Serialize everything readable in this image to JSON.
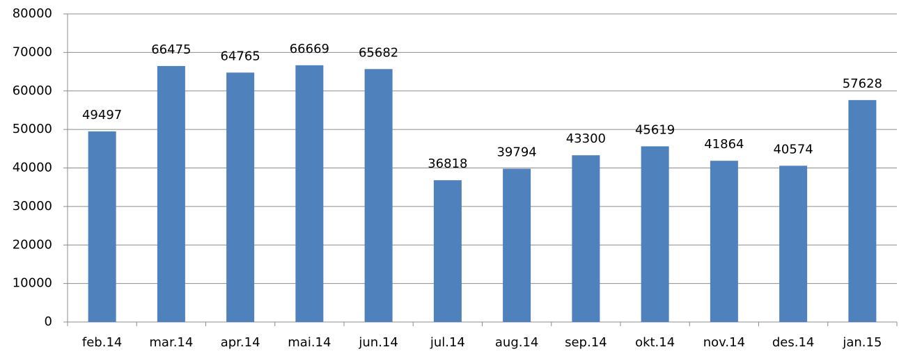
{
  "chart_data": {
    "type": "bar",
    "categories": [
      "feb.14",
      "mar.14",
      "apr.14",
      "mai.14",
      "jun.14",
      "jul.14",
      "aug.14",
      "sep.14",
      "okt.14",
      "nov.14",
      "des.14",
      "jan.15"
    ],
    "values": [
      49497,
      66475,
      64765,
      66669,
      65682,
      36818,
      39794,
      43300,
      45619,
      41864,
      40574,
      57628
    ],
    "color": "#4f81bd",
    "ylim": [
      0,
      80000
    ],
    "yticks": [
      0,
      10000,
      20000,
      30000,
      40000,
      50000,
      60000,
      70000,
      80000
    ],
    "grid": true,
    "data_labels": true
  }
}
